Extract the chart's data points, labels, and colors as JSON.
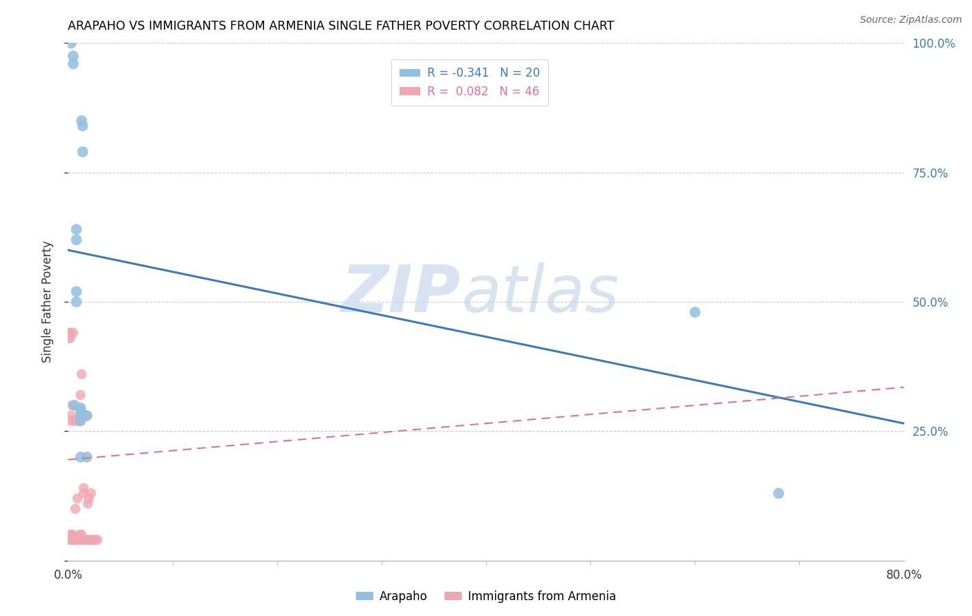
{
  "title": "ARAPAHO VS IMMIGRANTS FROM ARMENIA SINGLE FATHER POVERTY CORRELATION CHART",
  "source": "Source: ZipAtlas.com",
  "ylabel": "Single Father Poverty",
  "legend_arapaho_r": "-0.341",
  "legend_arapaho_n": "20",
  "legend_armenia_r": "0.082",
  "legend_armenia_n": "46",
  "legend_label_arapaho": "Arapaho",
  "legend_label_armenia": "Immigrants from Armenia",
  "arapaho_color": "#92c0e0",
  "armenia_color": "#f0a8b0",
  "arapaho_line_color": "#3a7abf",
  "armenia_line_color": "#e07090",
  "watermark_zip": "ZIP",
  "watermark_atlas": "atlas",
  "xlim": [
    0.0,
    0.8
  ],
  "ylim": [
    0.0,
    1.0
  ],
  "grid_yticks": [
    0.25,
    0.5,
    0.75,
    1.0
  ],
  "right_ytick_labels": [
    "25.0%",
    "50.0%",
    "75.0%",
    "100.0%"
  ],
  "grid_color": "#cccccc",
  "background_color": "#ffffff",
  "arapaho_x": [
    0.003,
    0.005,
    0.005,
    0.013,
    0.014,
    0.014,
    0.008,
    0.008,
    0.008,
    0.008,
    0.006,
    0.012,
    0.012,
    0.012,
    0.012,
    0.012,
    0.018,
    0.018,
    0.6,
    0.68
  ],
  "arapaho_y": [
    1.0,
    0.975,
    0.96,
    0.85,
    0.84,
    0.79,
    0.64,
    0.62,
    0.52,
    0.5,
    0.3,
    0.295,
    0.29,
    0.28,
    0.27,
    0.2,
    0.28,
    0.2,
    0.48,
    0.13
  ],
  "armenia_x": [
    0.001,
    0.001,
    0.001,
    0.002,
    0.002,
    0.002,
    0.002,
    0.003,
    0.003,
    0.003,
    0.004,
    0.004,
    0.005,
    0.005,
    0.005,
    0.006,
    0.006,
    0.007,
    0.007,
    0.008,
    0.008,
    0.009,
    0.01,
    0.01,
    0.011,
    0.012,
    0.012,
    0.013,
    0.013,
    0.014,
    0.014,
    0.015,
    0.015,
    0.015,
    0.016,
    0.017,
    0.018,
    0.019,
    0.019,
    0.02,
    0.021,
    0.022,
    0.023,
    0.024,
    0.026,
    0.028
  ],
  "armenia_y": [
    0.44,
    0.43,
    0.44,
    0.44,
    0.43,
    0.05,
    0.04,
    0.27,
    0.28,
    0.05,
    0.3,
    0.04,
    0.44,
    0.05,
    0.04,
    0.27,
    0.04,
    0.1,
    0.04,
    0.27,
    0.04,
    0.12,
    0.27,
    0.04,
    0.27,
    0.32,
    0.05,
    0.36,
    0.05,
    0.28,
    0.04,
    0.14,
    0.13,
    0.04,
    0.28,
    0.04,
    0.28,
    0.11,
    0.04,
    0.12,
    0.04,
    0.13,
    0.04,
    0.04,
    0.04,
    0.04
  ],
  "blue_line_x0": 0.0,
  "blue_line_y0": 0.6,
  "blue_line_x1": 0.8,
  "blue_line_y1": 0.265,
  "pink_line_x0": 0.0,
  "pink_line_y0": 0.195,
  "pink_line_x1": 0.8,
  "pink_line_y1": 0.335
}
